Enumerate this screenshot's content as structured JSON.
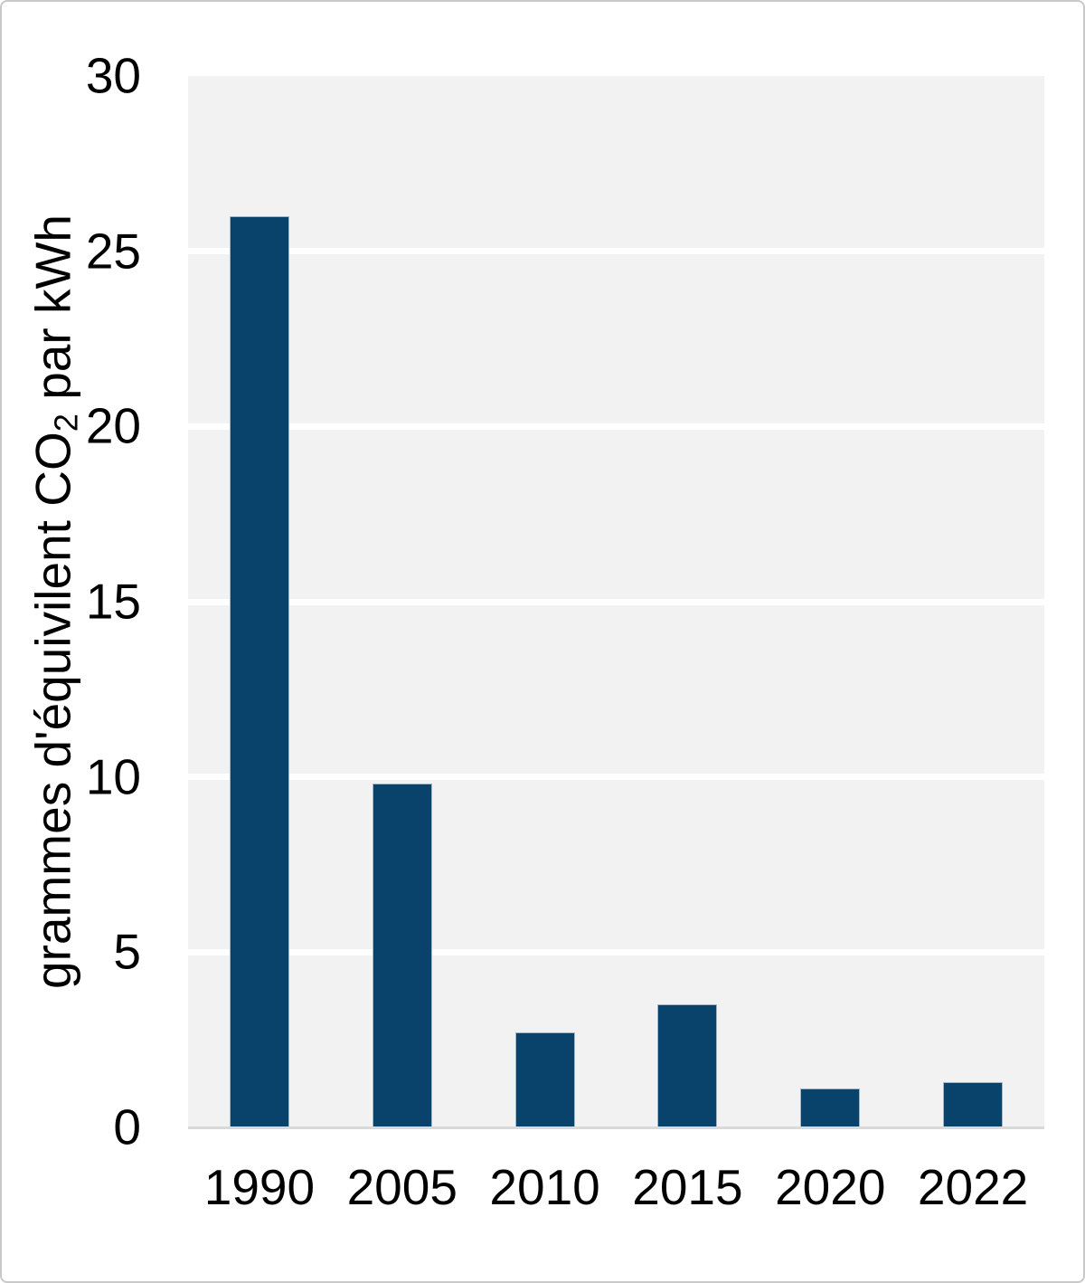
{
  "chart_data": {
    "type": "bar",
    "categories": [
      "1990",
      "2005",
      "2010",
      "2015",
      "2020",
      "2022"
    ],
    "values": [
      26,
      9.8,
      2.7,
      3.5,
      1.1,
      1.3
    ],
    "title": "",
    "xlabel": "",
    "ylabel": "grammes d'équivilent CO2 par kWh",
    "ylabel_parts": {
      "pre": "grammes d'équivilent CO",
      "sub": "2",
      "post": " par kWh"
    },
    "ylim": [
      0,
      30
    ],
    "yticks": [
      0,
      5,
      10,
      15,
      20,
      25,
      30
    ],
    "grid": true,
    "legend": false,
    "colors": {
      "bar_fill": "#09436B",
      "bar_border": "#A3B6C4",
      "plot_background": "#F2F2F2",
      "gridline": "#FFFFFF",
      "axis_line": "#D9D9D9",
      "text": "#000000",
      "frame_border": "#C9C9C9",
      "page_background": "#FFFFFF"
    }
  }
}
